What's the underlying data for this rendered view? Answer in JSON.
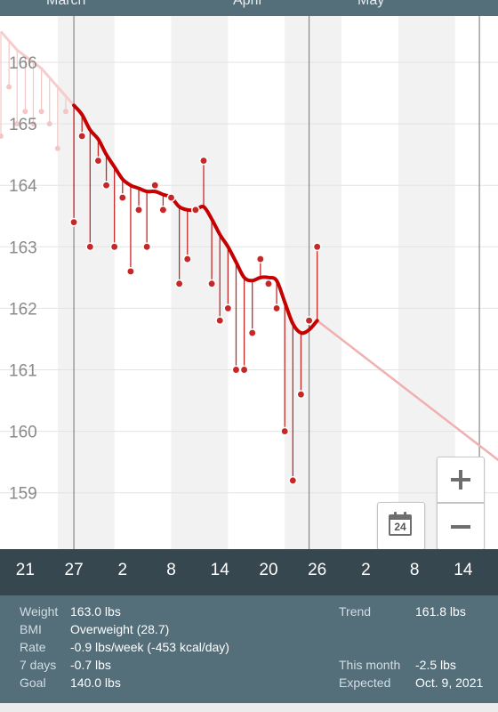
{
  "months": [
    {
      "label": "March",
      "x": 27
    },
    {
      "label": "April",
      "x": 56
    },
    {
      "label": "May",
      "x": 77
    }
  ],
  "x_ticks": [
    "21",
    "27",
    "2",
    "8",
    "14",
    "20",
    "26",
    "2",
    "8",
    "14",
    "2"
  ],
  "y_ticks": [
    "166",
    "165",
    "164",
    "163",
    "162",
    "161",
    "160",
    "159"
  ],
  "calendar_day": "24",
  "stats": {
    "weight_label": "Weight",
    "weight_value": "163.0 lbs",
    "bmi_label": "BMI",
    "bmi_value": "Overweight (28.7)",
    "rate_label": "Rate",
    "rate_value": "-0.9 lbs/week (-453 kcal/day)",
    "days7_label": "7 days",
    "days7_value": "-0.7 lbs",
    "goal_label": "Goal",
    "goal_value": "140.0 lbs",
    "trend_label": "Trend",
    "trend_value": "161.8 lbs",
    "month_label": "This month",
    "month_value": "-2.5 lbs",
    "expected_label": "Expected",
    "expected_value": "Oct. 9, 2021"
  },
  "colors": {
    "trend": "#c40000",
    "point": "#c62828",
    "projection": "#f0b0b0",
    "panel": "#546e7a",
    "axis_bar": "#37474f"
  },
  "chart_data": {
    "type": "line",
    "title": "",
    "xlabel": "",
    "ylabel": "",
    "ylim": [
      158.5,
      166.8
    ],
    "xlim": [
      18,
      89
    ],
    "x_unit": "days from March 1",
    "weights": {
      "x": [
        27,
        28,
        29,
        30,
        31,
        32,
        33,
        34,
        35,
        36,
        37,
        38,
        39,
        40,
        41,
        42,
        43,
        44,
        45,
        46,
        47,
        48,
        49,
        50,
        51,
        52,
        53,
        54,
        55
      ],
      "y": [
        163.4,
        164.8,
        163.0,
        164.4,
        164.0,
        163.0,
        163.8,
        162.6,
        163.6,
        163.0,
        164.0,
        163.6,
        163.8,
        162.4,
        162.8,
        163.6,
        164.4,
        162.4,
        161.8,
        162.0,
        161.0,
        161.0,
        161.6,
        162.8,
        162.4,
        162.0,
        160.0,
        159.2,
        160.6
      ]
    },
    "weights_extra": {
      "x": [
        56,
        57
      ],
      "y": [
        161.8,
        163.0
      ]
    },
    "trend": {
      "x": [
        27,
        28,
        29,
        30,
        31,
        32,
        33,
        34,
        35,
        36,
        37,
        38,
        39,
        40,
        41,
        42,
        43,
        44,
        45,
        46,
        47,
        48,
        49,
        50,
        51,
        52,
        53,
        54,
        55,
        56,
        57
      ],
      "y": [
        165.3,
        165.15,
        164.9,
        164.75,
        164.5,
        164.3,
        164.1,
        164.0,
        163.95,
        163.9,
        163.9,
        163.85,
        163.8,
        163.65,
        163.6,
        163.6,
        163.65,
        163.45,
        163.2,
        163.0,
        162.75,
        162.5,
        162.45,
        162.5,
        162.5,
        162.45,
        162.1,
        161.75,
        161.6,
        161.65,
        161.8
      ]
    },
    "earlier": {
      "x": [
        18,
        19,
        20,
        21,
        22,
        23,
        24,
        25,
        26
      ],
      "y": [
        164.8,
        165.6,
        165.0,
        165.2,
        165.0,
        165.2,
        165.0,
        164.6,
        165.2
      ],
      "trend": [
        166.5,
        166.35,
        166.2,
        166.1,
        166.0,
        165.9,
        165.75,
        165.6,
        165.45
      ]
    },
    "projection": {
      "x": [
        57,
        89
      ],
      "y": [
        161.8,
        158.55
      ]
    }
  }
}
